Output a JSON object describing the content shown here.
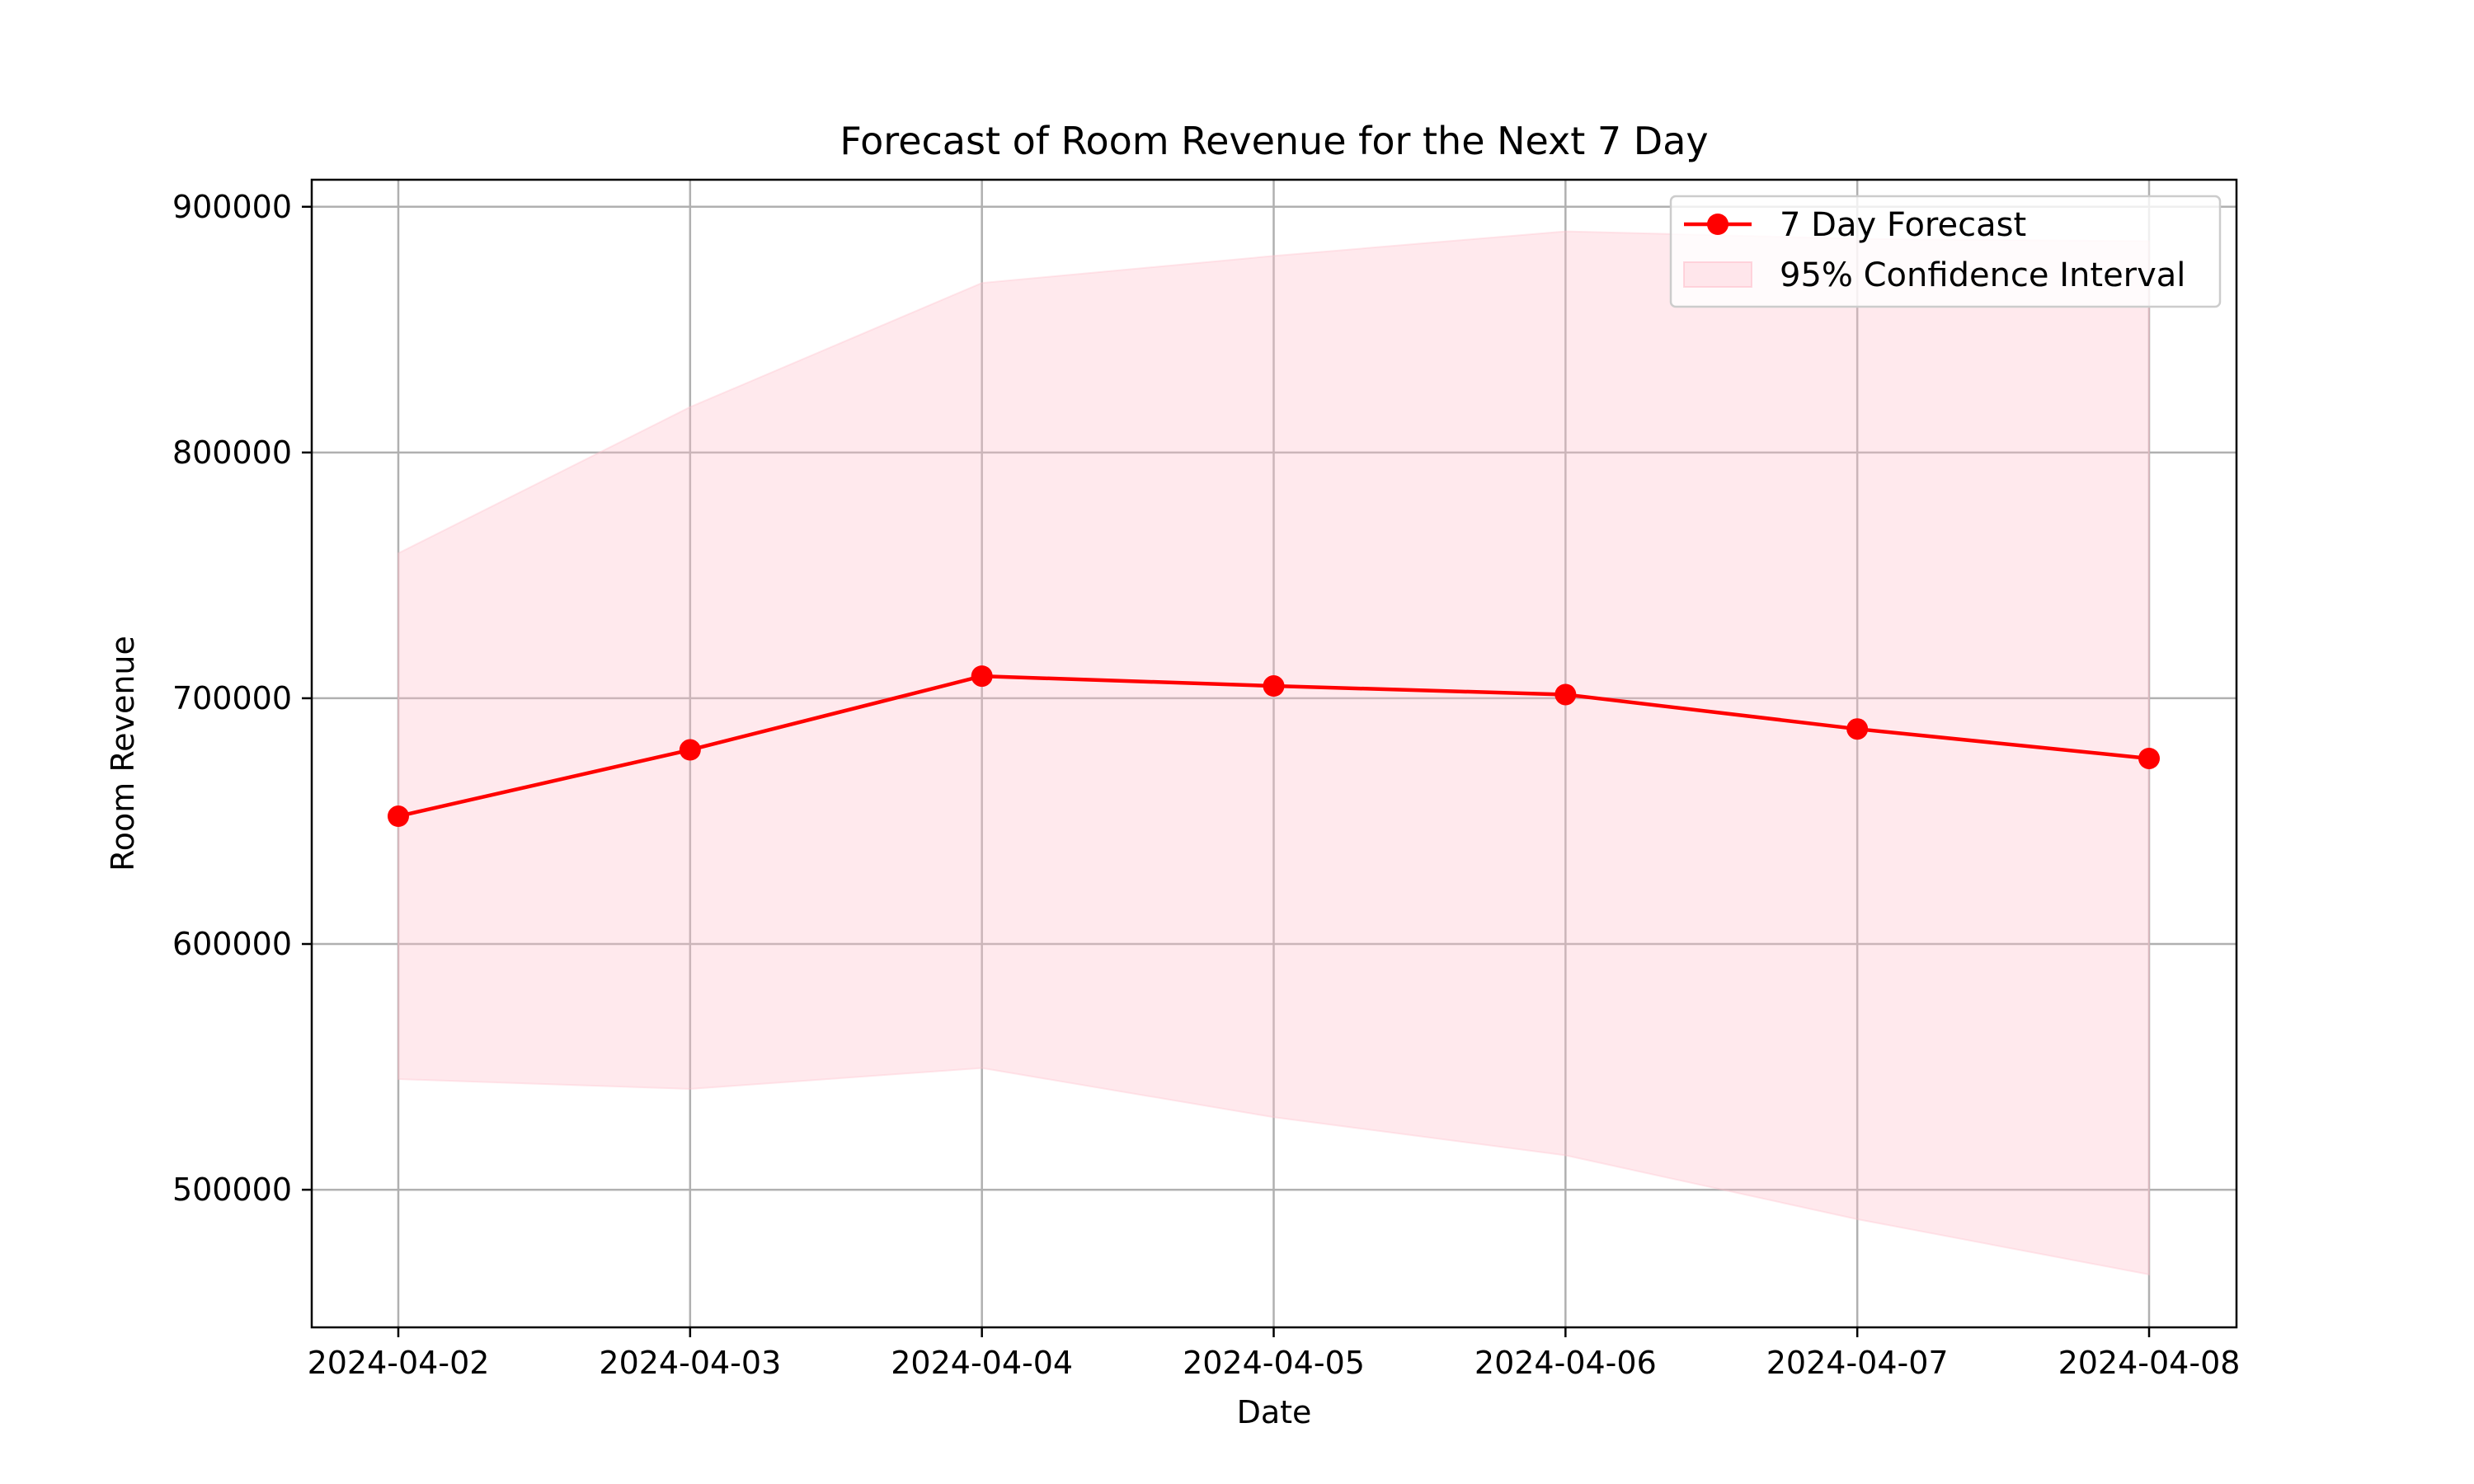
{
  "chart_data": {
    "type": "line",
    "title": "Forecast of Room Revenue for the Next 7 Day",
    "xlabel": "Date",
    "ylabel": "Room Revenue",
    "categories": [
      "2024-04-02",
      "2024-04-03",
      "2024-04-04",
      "2024-04-05",
      "2024-04-06",
      "2024-04-07",
      "2024-04-08"
    ],
    "series": [
      {
        "name": "7 Day Forecast",
        "color": "#ff0000",
        "marker": "circle",
        "values": [
          652000,
          679000,
          709000,
          705000,
          701500,
          687500,
          675500
        ]
      }
    ],
    "confidence_interval": {
      "name": "95% Confidence Interval",
      "color": "#ffc0cb",
      "lower": [
        545000,
        541000,
        549500,
        529500,
        514000,
        488000,
        465500
      ],
      "upper": [
        759000,
        818500,
        869000,
        880000,
        890000,
        887000,
        886000
      ]
    },
    "yticks": [
      500000,
      600000,
      700000,
      800000,
      900000
    ],
    "ylim": [
      444000,
      911000
    ],
    "grid": true,
    "legend_position": "top-right"
  }
}
